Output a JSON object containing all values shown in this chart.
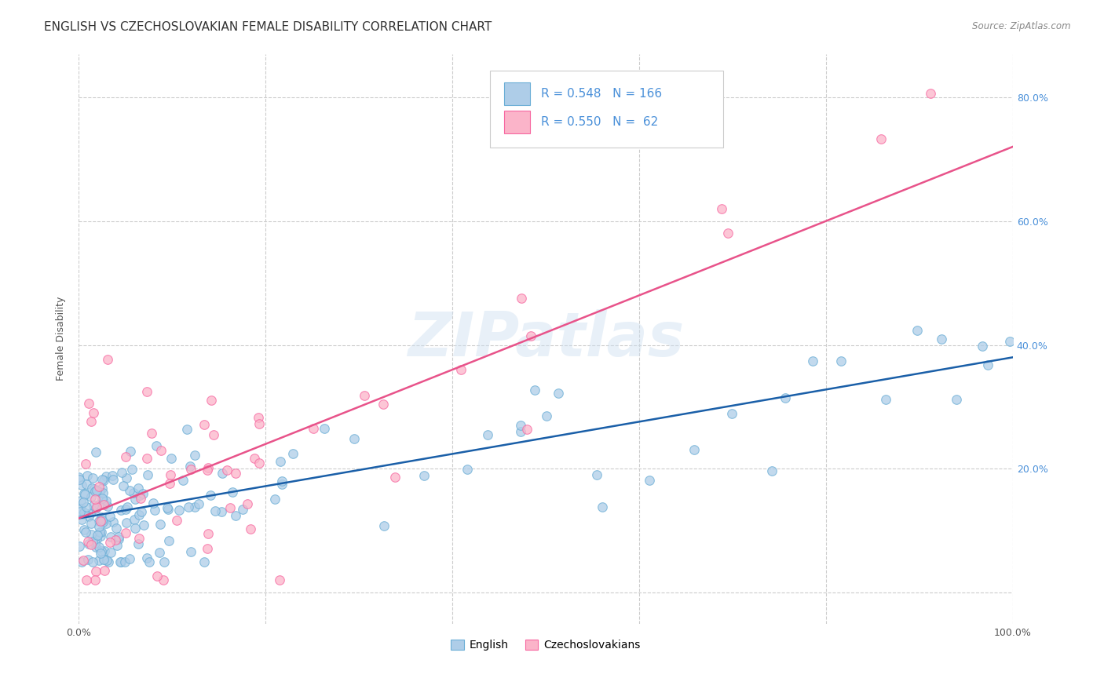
{
  "title": "ENGLISH VS CZECHOSLOVAKIAN FEMALE DISABILITY CORRELATION CHART",
  "source": "Source: ZipAtlas.com",
  "ylabel": "Female Disability",
  "xlim": [
    0.0,
    1.0
  ],
  "ylim": [
    -0.05,
    0.87
  ],
  "x_ticks": [
    0.0,
    0.2,
    0.4,
    0.6,
    0.8,
    1.0
  ],
  "x_tick_labels": [
    "0.0%",
    "",
    "",
    "",
    "",
    "100.0%"
  ],
  "y_ticks": [
    0.0,
    0.2,
    0.4,
    0.6,
    0.8
  ],
  "y_tick_labels": [
    "",
    "20.0%",
    "40.0%",
    "60.0%",
    "80.0%"
  ],
  "english_R": 0.548,
  "english_N": 166,
  "czech_R": 0.55,
  "czech_N": 62,
  "english_edge_color": "#6baed6",
  "english_face_color": "#aecde8",
  "czech_edge_color": "#f768a1",
  "czech_face_color": "#fbb4c9",
  "english_line_color": "#1a5fa8",
  "czech_line_color": "#e8538a",
  "legend_label_english": "English",
  "legend_label_czech": "Czechoslovakians",
  "watermark": "ZIPatlas",
  "title_fontsize": 11,
  "axis_label_fontsize": 9,
  "tick_fontsize": 9,
  "legend_R_color": "#4a90d9",
  "legend_N_color": "#333333"
}
